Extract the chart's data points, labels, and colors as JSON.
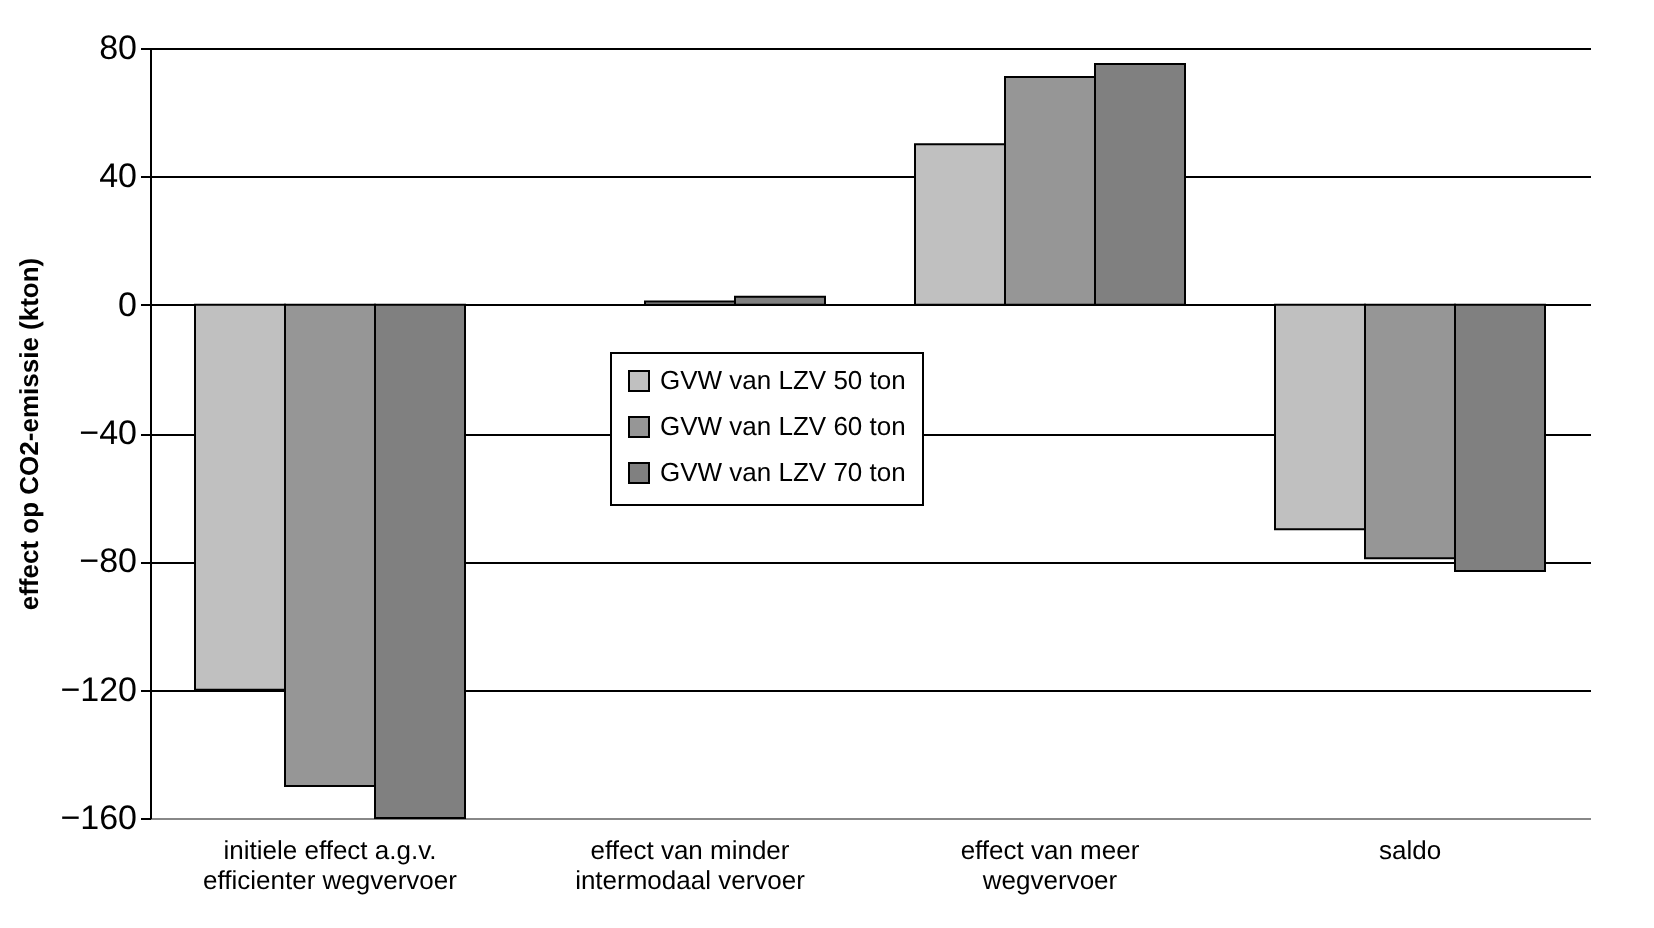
{
  "chart_data": {
    "type": "bar",
    "ylabel": "effect op CO2-emissie (kton)",
    "categories": [
      "initiele effect a.g.v.\nefficienter wegvervoer",
      "effect van minder\nintermodaal vervoer",
      "effect van meer\nwegvervoer",
      "saldo"
    ],
    "series": [
      {
        "name": "GVW van LZV 50 ton",
        "color": "#c0c0c0",
        "values": [
          -120,
          null,
          50,
          -70
        ]
      },
      {
        "name": "GVW van LZV 60 ton",
        "color": "#969696",
        "values": [
          -150,
          1,
          71,
          -79
        ]
      },
      {
        "name": "GVW van LZV 70 ton",
        "color": "#808080",
        "values": [
          -160,
          2.5,
          75,
          -83
        ]
      }
    ],
    "ylim": [
      -160,
      80
    ],
    "yticks": [
      -160,
      -120,
      -80,
      -40,
      0,
      40,
      80
    ],
    "grid": "y",
    "legend": "center"
  }
}
